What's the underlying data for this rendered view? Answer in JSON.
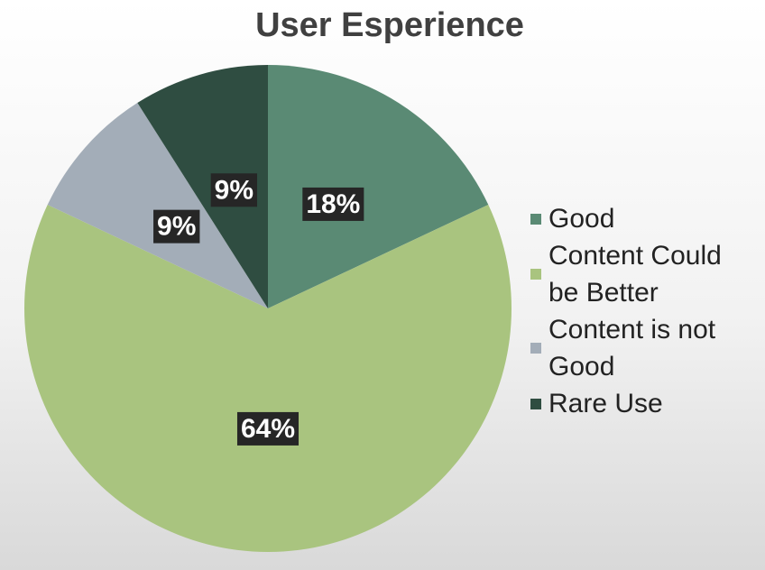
{
  "chart_data": {
    "type": "pie",
    "title": "User Esperience",
    "categories": [
      "Good",
      "Content Could be Better",
      "Content is not Good",
      "Rare Use"
    ],
    "values": [
      18,
      64,
      9,
      9
    ],
    "value_labels": [
      "18%",
      "64%",
      "9%",
      "9%"
    ],
    "colors": [
      "#5a8a74",
      "#a9c47f",
      "#a3adb8",
      "#2f4d41"
    ],
    "legend": "right"
  }
}
